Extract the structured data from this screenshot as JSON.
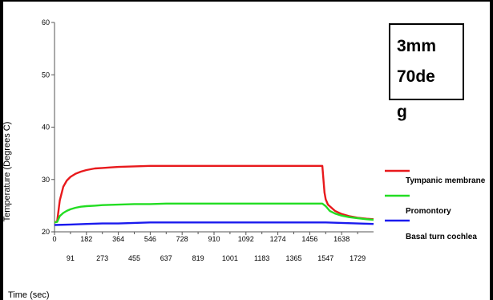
{
  "colors": {
    "background": "#ffffff",
    "frame": "#000000",
    "axis": "#555555",
    "tympanic": "#e8191c",
    "promontory": "#22dd22",
    "basal": "#1a1aee"
  },
  "annotation": {
    "lines": [
      "3mm",
      "70de",
      "g"
    ]
  },
  "chart_data": {
    "type": "line",
    "title": "",
    "xlabel": "Time (sec)",
    "ylabel": "Temperature (Degrees C)",
    "xlim": [
      0,
      1820
    ],
    "ylim": [
      20,
      60
    ],
    "grid": false,
    "legend_position": "right",
    "y_ticks": [
      20,
      30,
      40,
      50,
      60
    ],
    "x_ticks_upper": [
      0,
      182,
      364,
      546,
      728,
      910,
      1092,
      1274,
      1456,
      1638
    ],
    "x_ticks_lower": [
      91,
      273,
      455,
      637,
      819,
      1001,
      1183,
      1365,
      1547,
      1729
    ],
    "series": [
      {
        "name": "Tympanic membrane",
        "color": "#e8191c",
        "x": [
          0,
          15,
          30,
          50,
          70,
          91,
          120,
          150,
          182,
          230,
          273,
          320,
          364,
          455,
          546,
          637,
          728,
          819,
          910,
          1001,
          1092,
          1183,
          1274,
          1365,
          1456,
          1528,
          1540,
          1547,
          1560,
          1580,
          1600,
          1638,
          1680,
          1729,
          1780,
          1820
        ],
        "y": [
          21.8,
          22.0,
          26.0,
          28.6,
          29.8,
          30.5,
          31.1,
          31.5,
          31.8,
          32.1,
          32.2,
          32.3,
          32.4,
          32.5,
          32.6,
          32.6,
          32.6,
          32.6,
          32.6,
          32.6,
          32.6,
          32.6,
          32.6,
          32.6,
          32.6,
          32.6,
          27.5,
          26.2,
          25.2,
          24.6,
          24.0,
          23.4,
          23.0,
          22.7,
          22.5,
          22.4
        ]
      },
      {
        "name": "Promontory",
        "color": "#22dd22",
        "x": [
          0,
          15,
          30,
          50,
          70,
          91,
          120,
          150,
          182,
          230,
          273,
          364,
          455,
          546,
          637,
          728,
          819,
          910,
          1001,
          1092,
          1183,
          1274,
          1365,
          1456,
          1528,
          1547,
          1570,
          1600,
          1638,
          1680,
          1729,
          1780,
          1820
        ],
        "y": [
          21.8,
          21.9,
          23.0,
          23.6,
          24.0,
          24.3,
          24.6,
          24.8,
          24.9,
          25.0,
          25.1,
          25.2,
          25.3,
          25.3,
          25.4,
          25.4,
          25.4,
          25.4,
          25.4,
          25.4,
          25.4,
          25.4,
          25.4,
          25.4,
          25.4,
          24.9,
          24.0,
          23.5,
          23.1,
          22.8,
          22.6,
          22.4,
          22.3
        ]
      },
      {
        "name": "Basal turn cochlea",
        "color": "#1a1aee",
        "x": [
          0,
          91,
          182,
          273,
          364,
          455,
          546,
          637,
          728,
          819,
          910,
          1001,
          1092,
          1183,
          1274,
          1365,
          1456,
          1547,
          1638,
          1729,
          1820
        ],
        "y": [
          21.3,
          21.4,
          21.5,
          21.6,
          21.6,
          21.7,
          21.8,
          21.8,
          21.8,
          21.8,
          21.8,
          21.8,
          21.8,
          21.8,
          21.8,
          21.8,
          21.8,
          21.8,
          21.7,
          21.6,
          21.5
        ]
      }
    ]
  }
}
